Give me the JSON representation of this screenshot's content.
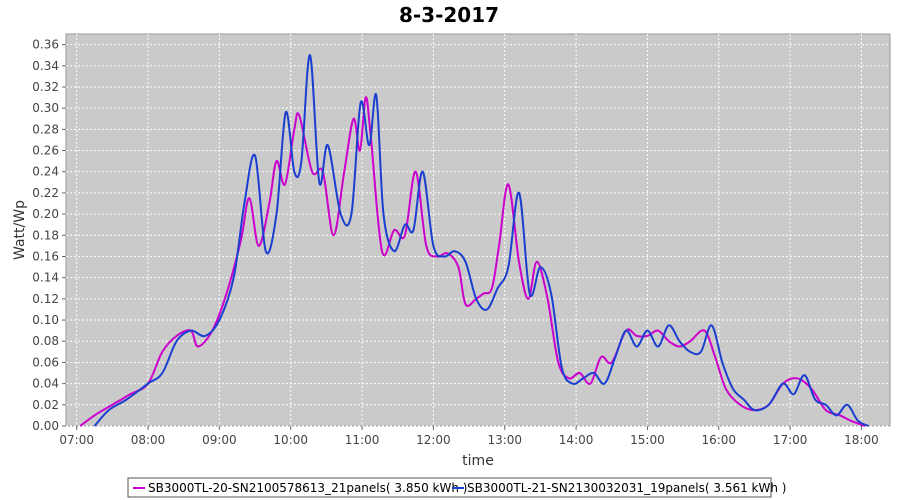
{
  "chart_data": {
    "type": "line",
    "title": "8-3-2017",
    "xlabel": "time",
    "ylabel": "Watt/Wp",
    "xlim": [
      6.85,
      18.4
    ],
    "ylim": [
      0,
      0.37
    ],
    "x_ticks": [
      "07:00",
      "08:00",
      "09:00",
      "10:00",
      "11:00",
      "12:00",
      "13:00",
      "14:00",
      "15:00",
      "16:00",
      "17:00",
      "18:00"
    ],
    "y_ticks": [
      "0.00",
      "0.02",
      "0.04",
      "0.06",
      "0.08",
      "0.10",
      "0.12",
      "0.14",
      "0.16",
      "0.18",
      "0.20",
      "0.22",
      "0.24",
      "0.26",
      "0.28",
      "0.30",
      "0.32",
      "0.34",
      "0.36"
    ],
    "grid": true,
    "background": "#cacaca",
    "legend_position": "bottom",
    "series": [
      {
        "name": "SB3000TL-20-SN2100578613_21panels( 3.850 kWh )",
        "color": "#cc00cc",
        "points": [
          [
            7.05,
            0.0
          ],
          [
            7.25,
            0.01
          ],
          [
            7.5,
            0.02
          ],
          [
            7.75,
            0.03
          ],
          [
            8.0,
            0.04
          ],
          [
            8.2,
            0.07
          ],
          [
            8.4,
            0.085
          ],
          [
            8.6,
            0.09
          ],
          [
            8.7,
            0.075
          ],
          [
            8.9,
            0.09
          ],
          [
            9.1,
            0.125
          ],
          [
            9.3,
            0.175
          ],
          [
            9.42,
            0.215
          ],
          [
            9.55,
            0.17
          ],
          [
            9.7,
            0.21
          ],
          [
            9.8,
            0.25
          ],
          [
            9.92,
            0.228
          ],
          [
            10.05,
            0.28
          ],
          [
            10.12,
            0.293
          ],
          [
            10.3,
            0.24
          ],
          [
            10.45,
            0.24
          ],
          [
            10.6,
            0.18
          ],
          [
            10.75,
            0.24
          ],
          [
            10.88,
            0.29
          ],
          [
            10.97,
            0.26
          ],
          [
            11.05,
            0.31
          ],
          [
            11.12,
            0.275
          ],
          [
            11.28,
            0.165
          ],
          [
            11.45,
            0.185
          ],
          [
            11.6,
            0.18
          ],
          [
            11.75,
            0.24
          ],
          [
            11.9,
            0.17
          ],
          [
            12.05,
            0.16
          ],
          [
            12.2,
            0.163
          ],
          [
            12.35,
            0.15
          ],
          [
            12.45,
            0.115
          ],
          [
            12.6,
            0.12
          ],
          [
            12.7,
            0.125
          ],
          [
            12.82,
            0.13
          ],
          [
            12.92,
            0.17
          ],
          [
            13.05,
            0.228
          ],
          [
            13.2,
            0.155
          ],
          [
            13.33,
            0.12
          ],
          [
            13.45,
            0.155
          ],
          [
            13.6,
            0.12
          ],
          [
            13.75,
            0.06
          ],
          [
            13.9,
            0.045
          ],
          [
            14.05,
            0.05
          ],
          [
            14.2,
            0.04
          ],
          [
            14.35,
            0.065
          ],
          [
            14.5,
            0.06
          ],
          [
            14.7,
            0.09
          ],
          [
            14.85,
            0.085
          ],
          [
            15.0,
            0.085
          ],
          [
            15.15,
            0.09
          ],
          [
            15.3,
            0.08
          ],
          [
            15.45,
            0.075
          ],
          [
            15.6,
            0.08
          ],
          [
            15.8,
            0.09
          ],
          [
            15.95,
            0.065
          ],
          [
            16.1,
            0.035
          ],
          [
            16.3,
            0.02
          ],
          [
            16.5,
            0.015
          ],
          [
            16.7,
            0.02
          ],
          [
            16.9,
            0.04
          ],
          [
            17.1,
            0.045
          ],
          [
            17.3,
            0.035
          ],
          [
            17.5,
            0.015
          ],
          [
            17.7,
            0.01
          ],
          [
            17.85,
            0.005
          ],
          [
            18.05,
            0.0
          ]
        ]
      },
      {
        "name": "SB3000TL-21-SN2130032031_19panels( 3.561 kWh )",
        "color": "#1a3fd0",
        "points": [
          [
            7.25,
            0.0
          ],
          [
            7.45,
            0.015
          ],
          [
            7.7,
            0.025
          ],
          [
            8.0,
            0.04
          ],
          [
            8.2,
            0.05
          ],
          [
            8.4,
            0.08
          ],
          [
            8.6,
            0.09
          ],
          [
            8.8,
            0.085
          ],
          [
            9.0,
            0.1
          ],
          [
            9.2,
            0.14
          ],
          [
            9.35,
            0.21
          ],
          [
            9.5,
            0.255
          ],
          [
            9.65,
            0.165
          ],
          [
            9.8,
            0.2
          ],
          [
            9.93,
            0.296
          ],
          [
            10.05,
            0.24
          ],
          [
            10.15,
            0.25
          ],
          [
            10.27,
            0.35
          ],
          [
            10.4,
            0.23
          ],
          [
            10.52,
            0.265
          ],
          [
            10.7,
            0.2
          ],
          [
            10.85,
            0.2
          ],
          [
            10.98,
            0.305
          ],
          [
            11.1,
            0.265
          ],
          [
            11.2,
            0.312
          ],
          [
            11.3,
            0.2
          ],
          [
            11.45,
            0.165
          ],
          [
            11.6,
            0.19
          ],
          [
            11.72,
            0.185
          ],
          [
            11.85,
            0.24
          ],
          [
            12.0,
            0.17
          ],
          [
            12.15,
            0.16
          ],
          [
            12.3,
            0.165
          ],
          [
            12.45,
            0.155
          ],
          [
            12.6,
            0.12
          ],
          [
            12.75,
            0.11
          ],
          [
            12.9,
            0.13
          ],
          [
            13.05,
            0.15
          ],
          [
            13.2,
            0.22
          ],
          [
            13.35,
            0.125
          ],
          [
            13.5,
            0.15
          ],
          [
            13.65,
            0.125
          ],
          [
            13.8,
            0.055
          ],
          [
            13.95,
            0.04
          ],
          [
            14.1,
            0.045
          ],
          [
            14.25,
            0.05
          ],
          [
            14.4,
            0.04
          ],
          [
            14.55,
            0.065
          ],
          [
            14.7,
            0.09
          ],
          [
            14.85,
            0.075
          ],
          [
            15.0,
            0.09
          ],
          [
            15.15,
            0.075
          ],
          [
            15.3,
            0.095
          ],
          [
            15.45,
            0.08
          ],
          [
            15.6,
            0.07
          ],
          [
            15.75,
            0.07
          ],
          [
            15.9,
            0.095
          ],
          [
            16.05,
            0.06
          ],
          [
            16.2,
            0.035
          ],
          [
            16.35,
            0.025
          ],
          [
            16.5,
            0.015
          ],
          [
            16.7,
            0.02
          ],
          [
            16.9,
            0.04
          ],
          [
            17.05,
            0.03
          ],
          [
            17.2,
            0.048
          ],
          [
            17.35,
            0.025
          ],
          [
            17.5,
            0.02
          ],
          [
            17.65,
            0.01
          ],
          [
            17.8,
            0.02
          ],
          [
            17.95,
            0.005
          ],
          [
            18.1,
            0.0
          ]
        ]
      }
    ]
  }
}
